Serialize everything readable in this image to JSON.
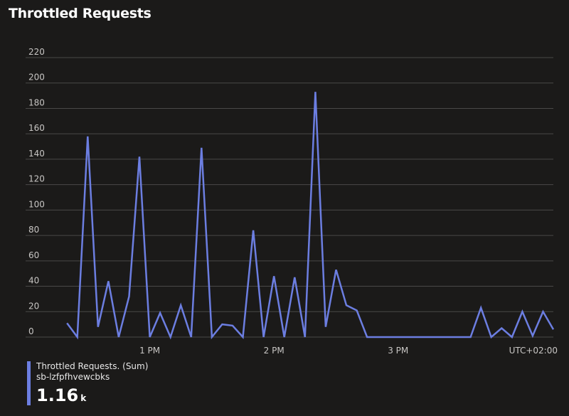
{
  "title": "Throttled Requests",
  "colors": {
    "series": "#6c7ee1",
    "grid": "#4a4948",
    "tick": "#c8c6c4"
  },
  "chart_data": {
    "type": "line",
    "ylim": [
      0,
      220
    ],
    "y_ticks": [
      "0",
      "20",
      "40",
      "60",
      "80",
      "100",
      "120",
      "140",
      "160",
      "180",
      "200",
      "220"
    ],
    "y_tick_values": [
      0,
      20,
      40,
      60,
      80,
      100,
      120,
      140,
      160,
      180,
      200,
      220
    ],
    "x_ticks": [
      {
        "label": "1 PM",
        "minute": 60
      },
      {
        "label": "2 PM",
        "minute": 120
      },
      {
        "label": "3 PM",
        "minute": 180
      }
    ],
    "xlim_minutes": [
      0,
      255
    ],
    "timezone": "UTC+02:00",
    "series": [
      {
        "name": "Throttled Requests. (Sum)",
        "minutes": [
          20,
          25,
          30,
          35,
          40,
          45,
          50,
          55,
          60,
          65,
          70,
          75,
          80,
          85,
          90,
          95,
          100,
          105,
          110,
          115,
          120,
          125,
          130,
          135,
          140,
          145,
          150,
          155,
          160,
          165,
          170,
          175,
          180,
          185,
          190,
          195,
          200,
          205,
          210,
          215,
          220,
          225,
          230,
          235,
          240,
          245,
          250,
          255
        ],
        "values": [
          11,
          0,
          158,
          8,
          44,
          0,
          32,
          142,
          0,
          19,
          0,
          25,
          0,
          149,
          0,
          10,
          9,
          0,
          84,
          0,
          48,
          0,
          47,
          0,
          193,
          8,
          53,
          25,
          21,
          0,
          0,
          0,
          0,
          0,
          0,
          0,
          0,
          0,
          0,
          0,
          23,
          0,
          7,
          0,
          20,
          1,
          20,
          6
        ]
      }
    ]
  },
  "legend": {
    "label": "Throttled Requests. (Sum)",
    "resource": "sb-lzfpfhvewcbks",
    "value": "1.16",
    "unit": "k"
  }
}
